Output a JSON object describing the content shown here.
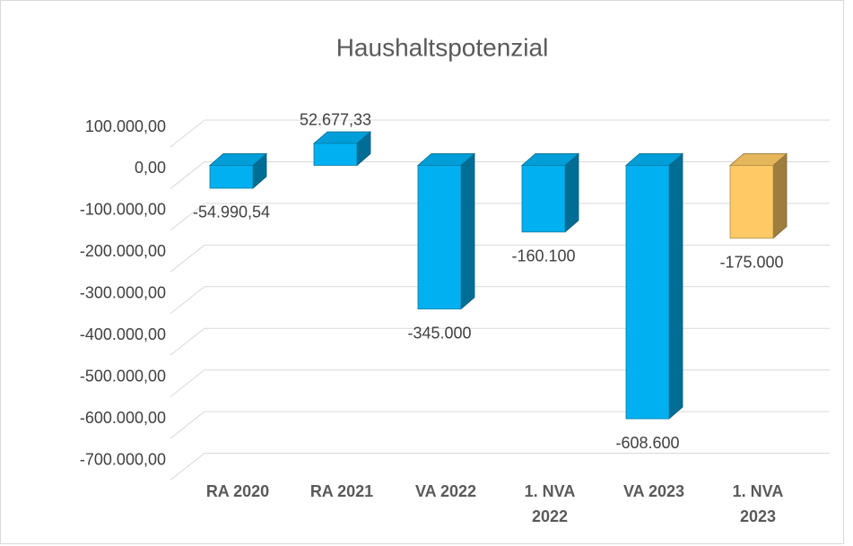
{
  "chart_data": {
    "type": "bar3d",
    "title": "Haushaltspotenzial",
    "categories": [
      "RA 2020",
      "RA 2021",
      "VA 2022",
      "1. NVA 2022",
      "VA 2023",
      "1. NVA 2023"
    ],
    "values": [
      -54990.54,
      52677.33,
      -345000,
      -160100,
      -608600,
      -175000
    ],
    "value_labels": [
      "-54.990,54",
      "52.677,33",
      "-345.000",
      "-160.100",
      "-608.600",
      "-175.000"
    ],
    "colors": [
      "#00b0f0",
      "#00b0f0",
      "#00b0f0",
      "#00b0f0",
      "#00b0f0",
      "#ffca66"
    ],
    "ylim": [
      -700000,
      100000
    ],
    "yticks": [
      {
        "value": 100000,
        "label": "100.000,00"
      },
      {
        "value": 0,
        "label": "0,00"
      },
      {
        "value": -100000,
        "label": "-100.000,00"
      },
      {
        "value": -200000,
        "label": "-200.000,00"
      },
      {
        "value": -300000,
        "label": "-300.000,00"
      },
      {
        "value": -400000,
        "label": "-400.000,00"
      },
      {
        "value": -500000,
        "label": "-500.000,00"
      },
      {
        "value": -600000,
        "label": "-600.000,00"
      },
      {
        "value": -700000,
        "label": "-700.000,00"
      }
    ],
    "grid": true
  }
}
